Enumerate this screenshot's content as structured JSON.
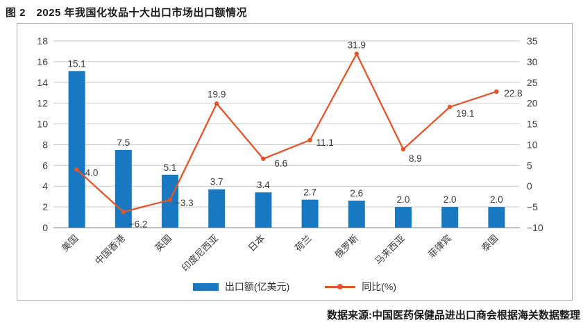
{
  "figure": {
    "title": "图 2　2025 年我国化妆品十大出口市场出口额情况",
    "source": "数据来源:中国医药保健品进出口商会根据海关数据整理"
  },
  "legend": {
    "bar_label": "出口额(亿美元)",
    "line_label": "同比(%)"
  },
  "colors": {
    "bar": "#1878c0",
    "line": "#e5532b",
    "grid": "#c9c9c9",
    "axis_line": "#9b9b9b",
    "tick_text": "#3d3d3d",
    "label_text": "#383838",
    "frame_border": "#a6a6a6"
  },
  "chart_data": {
    "type": "bar",
    "subtype": "bar-line-combo-dual-axis",
    "title": "图 2　2025 年我国化妆品十大出口市场出口额情况",
    "categories": [
      "美国",
      "中国香港",
      "英国",
      "印度尼西亚",
      "日本",
      "荷兰",
      "俄罗斯",
      "马来西亚",
      "菲律宾",
      "泰国"
    ],
    "series": [
      {
        "name": "出口额(亿美元)",
        "type": "bar",
        "axis": "left",
        "values": [
          15.1,
          7.5,
          5.1,
          3.7,
          3.4,
          2.7,
          2.6,
          2.0,
          2.0,
          2.0
        ],
        "labels": [
          "15.1",
          "7.5",
          "5.1",
          "3.7",
          "3.4",
          "2.7",
          "2.6",
          "2.0",
          "2.0",
          "2.0"
        ]
      },
      {
        "name": "同比(%)",
        "type": "line",
        "axis": "right",
        "values": [
          4.0,
          -6.2,
          -3.3,
          19.9,
          6.6,
          11.1,
          31.9,
          8.9,
          19.1,
          22.8
        ],
        "labels": [
          "4.0",
          "−6.2",
          "−3.3",
          "19.9",
          "6.6",
          "11.1",
          "31.9",
          "8.9",
          "19.1",
          "22.8"
        ],
        "label_placement": [
          {
            "dx": 12,
            "dy": 9,
            "anchor": "start"
          },
          {
            "dx": 8,
            "dy": 22,
            "anchor": "start"
          },
          {
            "dx": 7,
            "dy": 9,
            "anchor": "start"
          },
          {
            "dx": 0,
            "dy": -9,
            "anchor": "middle"
          },
          {
            "dx": 16,
            "dy": 11,
            "anchor": "start"
          },
          {
            "dx": 9,
            "dy": 8,
            "anchor": "start"
          },
          {
            "dx": 0,
            "dy": -8,
            "anchor": "middle"
          },
          {
            "dx": 8,
            "dy": 18,
            "anchor": "start"
          },
          {
            "dx": 9,
            "dy": 14,
            "anchor": "start"
          },
          {
            "dx": 11,
            "dy": 7,
            "anchor": "start"
          }
        ]
      }
    ],
    "left_axis": {
      "min": 0,
      "max": 18,
      "step": 2,
      "ticks": [
        "0",
        "2",
        "4",
        "6",
        "8",
        "10",
        "12",
        "14",
        "16",
        "18"
      ]
    },
    "right_axis": {
      "min": -10,
      "max": 35,
      "step": 5,
      "ticks": [
        "−10",
        "−5",
        "0",
        "5",
        "10",
        "15",
        "20",
        "25",
        "30",
        "35"
      ]
    },
    "grid": true,
    "legend_position": "bottom",
    "x_label_rotation": -45
  }
}
